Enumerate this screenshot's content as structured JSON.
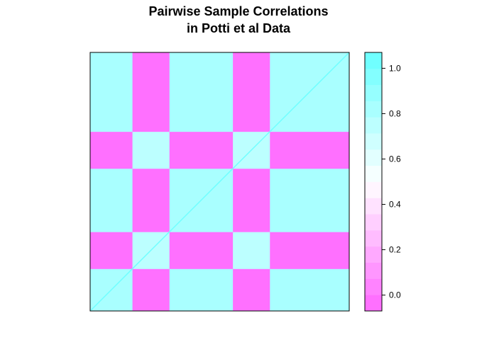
{
  "chart_data": {
    "type": "heatmap",
    "title_lines": [
      "Pairwise Sample Correlations",
      "in Potti et al Data"
    ],
    "xlabel": "",
    "ylabel": "",
    "block_sizes": [
      8,
      7,
      12,
      7,
      15
    ],
    "block_order_rows_bottom_to_top": [
      "A",
      "B",
      "A",
      "B",
      "A"
    ],
    "block_order_cols_left_to_right": [
      "A",
      "B",
      "A",
      "B",
      "A"
    ],
    "within_group_correlation_A": 0.82,
    "within_group_correlation_B": 0.76,
    "between_group_correlation": -0.03,
    "diagonal_value": 1.0,
    "colorbar": {
      "range": [
        -0.07,
        1.07
      ],
      "ticks": [
        0.0,
        0.2,
        0.4,
        0.6,
        0.8,
        1.0
      ],
      "tick_labels": [
        "0.0",
        "0.2",
        "0.4",
        "0.6",
        "0.8",
        "1.0"
      ],
      "levels": 16,
      "low_color": "#ff66ff",
      "mid_color": "#ffffff",
      "high_color": "#66ffff"
    }
  }
}
